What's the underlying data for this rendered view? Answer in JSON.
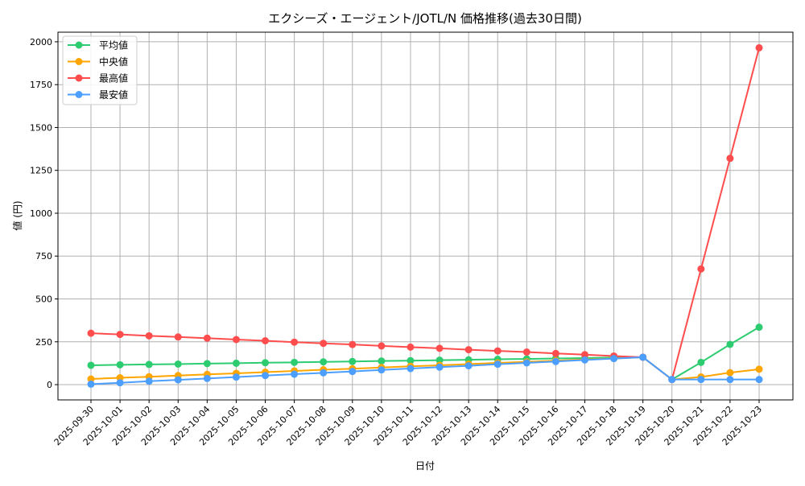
{
  "chart_data": {
    "type": "line",
    "title": "エクシーズ・エージェント/JOTL/N 価格推移(過去30日間)",
    "xlabel": "日付",
    "ylabel": "値 (円)",
    "ylim": [
      -89,
      2056
    ],
    "yticks": [
      0,
      250,
      500,
      750,
      1000,
      1250,
      1500,
      1750,
      2000
    ],
    "grid": true,
    "legend": "top-left",
    "categories": [
      "2025-09-30",
      "2025-10-01",
      "2025-10-02",
      "2025-10-03",
      "2025-10-04",
      "2025-10-05",
      "2025-10-06",
      "2025-10-07",
      "2025-10-08",
      "2025-10-09",
      "2025-10-10",
      "2025-10-11",
      "2025-10-12",
      "2025-10-13",
      "2025-10-14",
      "2025-10-15",
      "2025-10-16",
      "2025-10-17",
      "2025-10-18",
      "2025-10-19",
      "2025-10-20",
      "2025-10-21",
      "2025-10-22",
      "2025-10-23"
    ],
    "series": [
      {
        "name": "平均値",
        "color": "#2ecc71",
        "values": [
          113,
          116,
          118,
          120,
          123,
          125,
          128,
          130,
          133,
          135,
          138,
          140,
          143,
          145,
          148,
          150,
          153,
          155,
          158,
          160,
          30,
          130,
          235,
          335
        ]
      },
      {
        "name": "中央値",
        "color": "#ffa500",
        "values": [
          33,
          40,
          46,
          53,
          60,
          66,
          73,
          80,
          87,
          93,
          100,
          107,
          113,
          120,
          127,
          133,
          140,
          147,
          153,
          160,
          30,
          45,
          70,
          90
        ]
      },
      {
        "name": "最高値",
        "color": "#ff4d4d",
        "values": [
          300,
          293,
          285,
          278,
          271,
          263,
          256,
          248,
          241,
          234,
          226,
          219,
          212,
          204,
          197,
          190,
          182,
          175,
          167,
          160,
          30,
          675,
          1320,
          1965
        ]
      },
      {
        "name": "最安値",
        "color": "#4d9fff",
        "values": [
          3,
          11,
          20,
          28,
          36,
          44,
          53,
          61,
          69,
          77,
          86,
          94,
          102,
          110,
          119,
          127,
          135,
          144,
          152,
          160,
          30,
          30,
          30,
          30
        ]
      }
    ]
  }
}
